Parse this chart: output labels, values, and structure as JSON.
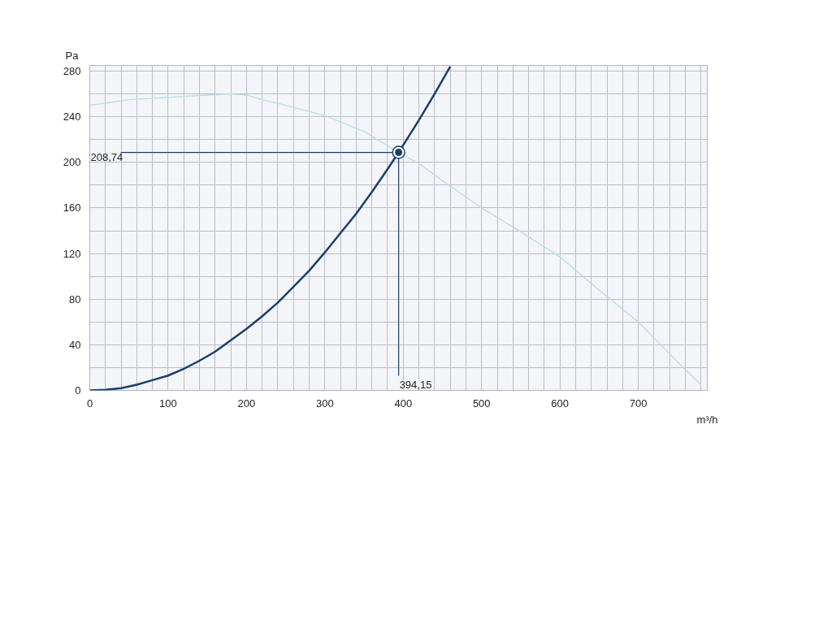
{
  "chart_data": {
    "type": "line",
    "xlabel": "m³/h",
    "ylabel": "Pa",
    "xlim": [
      0,
      788
    ],
    "ylim": [
      0,
      285
    ],
    "xticks": [
      0,
      {
        "value": 20,
        "label": null
      },
      {
        "value": 40,
        "label": null
      },
      {
        "value": 60,
        "label": null
      },
      {
        "value": 80,
        "label": null
      },
      100,
      {
        "value": 120,
        "label": null
      },
      {
        "value": 140,
        "label": null
      },
      {
        "value": 160,
        "label": null
      },
      {
        "value": 180,
        "label": null
      },
      200,
      {
        "value": 220,
        "label": null
      },
      {
        "value": 240,
        "label": null
      },
      {
        "value": 260,
        "label": null
      },
      {
        "value": 280,
        "label": null
      },
      300,
      {
        "value": 320,
        "label": null
      },
      {
        "value": 340,
        "label": null
      },
      {
        "value": 360,
        "label": null
      },
      {
        "value": 380,
        "label": null
      },
      400,
      {
        "value": 420,
        "label": null
      },
      {
        "value": 440,
        "label": null
      },
      {
        "value": 460,
        "label": null
      },
      {
        "value": 480,
        "label": null
      },
      500,
      {
        "value": 520,
        "label": null
      },
      {
        "value": 540,
        "label": null
      },
      {
        "value": 560,
        "label": null
      },
      {
        "value": 580,
        "label": null
      },
      600,
      {
        "value": 620,
        "label": null
      },
      {
        "value": 640,
        "label": null
      },
      {
        "value": 660,
        "label": null
      },
      {
        "value": 680,
        "label": null
      },
      700,
      {
        "value": 720,
        "label": null
      },
      {
        "value": 740,
        "label": null
      },
      {
        "value": 760,
        "label": null
      },
      {
        "value": 780,
        "label": null
      }
    ],
    "yticks": [
      0,
      {
        "value": 20,
        "label": null
      },
      40,
      {
        "value": 60,
        "label": null
      },
      80,
      {
        "value": 100,
        "label": null
      },
      120,
      {
        "value": 140,
        "label": null
      },
      160,
      {
        "value": 180,
        "label": null
      },
      200,
      {
        "value": 220,
        "label": null
      },
      240,
      {
        "value": 260,
        "label": null
      },
      280
    ],
    "grid": true,
    "marker": "none",
    "line_style": "solid",
    "series": [
      {
        "color": "#b7dde9",
        "x": [
          0,
          20,
          50,
          100,
          150,
          180,
          200,
          220,
          250,
          300,
          350,
          394.15,
          420,
          450,
          500,
          550,
          600,
          650,
          700,
          750,
          780
        ],
        "values": [
          250,
          252,
          255,
          257,
          259,
          260,
          259,
          255,
          250,
          241,
          227,
          208.74,
          199,
          184,
          160,
          139,
          117,
          88,
          60,
          25,
          5
        ]
      },
      {
        "color": "#1a3f6e",
        "x": [
          0,
          20,
          40,
          60,
          80,
          100,
          120,
          140,
          160,
          180,
          200,
          220,
          240,
          260,
          280,
          300,
          320,
          340,
          360,
          380,
          394.15,
          420,
          440,
          460
        ],
        "values": [
          0,
          0.5,
          2,
          5,
          9,
          13,
          19,
          26,
          34,
          44,
          54,
          65,
          77,
          91,
          105,
          121,
          138,
          155,
          174,
          194,
          208.74,
          237,
          260,
          284
        ]
      },
      {
        "type": "scatter",
        "marker": "circle",
        "color": "#1a3f6e",
        "x": [
          394.15
        ],
        "values": [
          208.74
        ]
      }
    ],
    "annotations": [
      {
        "text": "208,74",
        "x": 394.15,
        "y": 208.74
      },
      {
        "text": "394,15",
        "x": 394.15,
        "y": 208.74
      }
    ]
  }
}
